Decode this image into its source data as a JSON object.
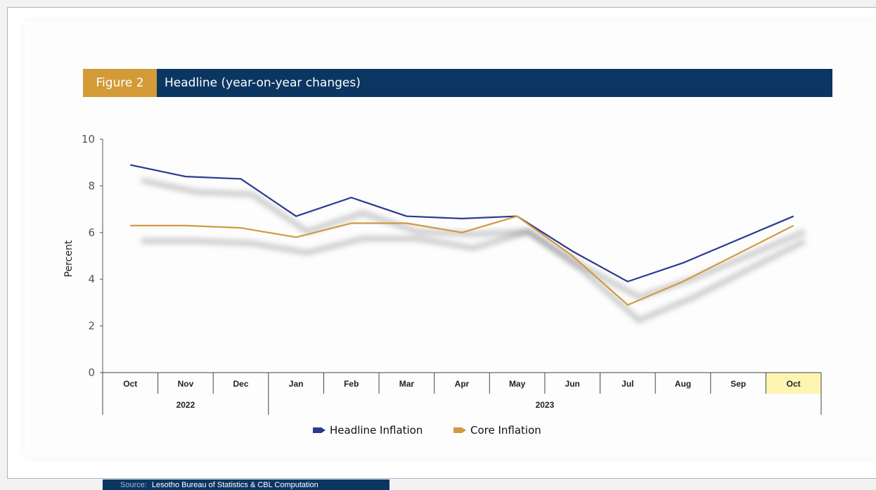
{
  "figure": {
    "label": "Figure 2",
    "title": "Headline (year-on-year changes)"
  },
  "source": {
    "label": "Source:",
    "text": "Lesotho Bureau of Statistics & CBL Computation"
  },
  "colors": {
    "headline": "#2b3a8e",
    "core": "#d09a42",
    "title_bar": "#0b3662",
    "figure_label_bg": "#d39b37",
    "highlight": "#fff5b3"
  },
  "chart_data": {
    "type": "line",
    "title": "Headline (year-on-year changes)",
    "ylabel": "Percent",
    "xlabel": "",
    "ylim": [
      0,
      10
    ],
    "yticks": [
      0,
      2,
      4,
      6,
      8,
      10
    ],
    "grid": false,
    "legend_position": "bottom",
    "categories": [
      "Oct",
      "Nov",
      "Dec",
      "Jan",
      "Feb",
      "Mar",
      "Apr",
      "May",
      "Jun",
      "Jul",
      "Aug",
      "Sep",
      "Oct"
    ],
    "year_groups": [
      {
        "label": "2022",
        "span": 3
      },
      {
        "label": "2023",
        "span": 10
      }
    ],
    "highlighted_category_index": 12,
    "series": [
      {
        "name": "Headline Inflation",
        "color": "#2b3a8e",
        "values": [
          8.9,
          8.4,
          8.3,
          6.7,
          7.5,
          6.7,
          6.6,
          6.7,
          5.2,
          3.9,
          4.7,
          5.7,
          6.7
        ]
      },
      {
        "name": "Core Inflation",
        "color": "#d09a42",
        "values": [
          6.3,
          6.3,
          6.2,
          5.8,
          6.4,
          6.4,
          6.0,
          6.7,
          5.0,
          2.9,
          3.9,
          5.1,
          6.3
        ]
      }
    ]
  }
}
